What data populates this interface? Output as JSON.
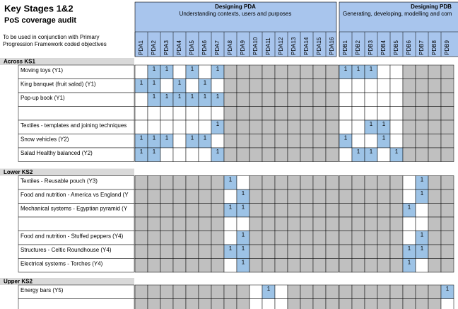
{
  "header": {
    "title": "Key Stages 1&2",
    "subtitle": "PoS coverage audit",
    "note": "To be used in conjunction with Primary Progression Framework coded objectives",
    "groups": [
      {
        "title": "Designing PDA",
        "subtitle": "Understanding contexts, users and purposes"
      },
      {
        "title": "Designing PDB",
        "subtitle": "Generating, developing, modelling and com"
      }
    ],
    "columns": [
      "PDA1",
      "PDA2",
      "PDA3",
      "PDA4",
      "PDA5",
      "PDA6",
      "PDA7",
      "PDA8",
      "PDA9",
      "PDA10",
      "PDA11",
      "PDA12",
      "PDA13",
      "PDA14",
      "PDA15",
      "PDA16",
      "PDB1",
      "PDB2",
      "PDB3",
      "PDB4",
      "PDB5",
      "PDB6",
      "PDB7",
      "PDB8",
      "PDB9"
    ]
  },
  "sections": [
    {
      "title": "Across KS1",
      "rows": [
        {
          "label": "Moving toys (Y1)",
          "cells": [
            null,
            1,
            1,
            null,
            1,
            null,
            1,
            null,
            null,
            null,
            null,
            null,
            null,
            null,
            null,
            null,
            1,
            1,
            1,
            null,
            null,
            null,
            null,
            null,
            null
          ]
        },
        {
          "label": "King banquet (fruit salad) (Y1)",
          "cells": [
            1,
            1,
            null,
            1,
            null,
            1,
            null,
            null,
            null,
            null,
            null,
            null,
            null,
            null,
            null,
            null,
            null,
            null,
            null,
            null,
            null,
            null,
            null,
            null,
            null
          ]
        },
        {
          "label": "Pop-up book (Y1)",
          "cells": [
            null,
            1,
            1,
            1,
            1,
            1,
            1,
            null,
            null,
            null,
            null,
            null,
            null,
            null,
            null,
            null,
            null,
            null,
            null,
            null,
            null,
            null,
            null,
            null,
            null
          ]
        },
        {
          "label": null,
          "cells": [
            null,
            null,
            null,
            null,
            null,
            null,
            null,
            null,
            null,
            null,
            null,
            null,
            null,
            null,
            null,
            null,
            null,
            null,
            null,
            null,
            null,
            null,
            null,
            null,
            null
          ]
        },
        {
          "label": "Textiles - templates and joining techniques",
          "cells": [
            null,
            null,
            null,
            null,
            null,
            null,
            1,
            null,
            null,
            null,
            null,
            null,
            null,
            null,
            null,
            null,
            null,
            null,
            1,
            1,
            null,
            null,
            null,
            null,
            null
          ]
        },
        {
          "label": "Snow vehicles (Y2)",
          "cells": [
            1,
            1,
            1,
            null,
            1,
            1,
            null,
            null,
            null,
            null,
            null,
            null,
            null,
            null,
            null,
            null,
            1,
            null,
            null,
            1,
            null,
            null,
            null,
            null,
            null
          ]
        },
        {
          "label": "Salad Healthy balanced (Y2)",
          "cells": [
            1,
            1,
            null,
            null,
            null,
            null,
            1,
            null,
            null,
            null,
            null,
            null,
            null,
            null,
            null,
            null,
            null,
            1,
            1,
            null,
            1,
            null,
            null,
            null,
            null
          ]
        }
      ]
    },
    {
      "title": "Lower KS2",
      "rows": [
        {
          "label": "Textiles - Reusable pouch (Y3)",
          "cells": [
            null,
            null,
            null,
            null,
            null,
            null,
            null,
            1,
            null,
            null,
            null,
            null,
            null,
            null,
            null,
            null,
            null,
            null,
            null,
            null,
            null,
            null,
            1,
            null,
            null
          ]
        },
        {
          "label": "Food and nutrition - America vs England (Y",
          "cells": [
            null,
            null,
            null,
            null,
            null,
            null,
            null,
            null,
            1,
            null,
            null,
            null,
            null,
            null,
            null,
            null,
            null,
            null,
            null,
            null,
            null,
            null,
            1,
            null,
            null
          ]
        },
        {
          "label": "Mechanical systems - Egyptian pyramid (Y",
          "cells": [
            null,
            null,
            null,
            null,
            null,
            null,
            null,
            1,
            1,
            null,
            null,
            null,
            null,
            null,
            null,
            null,
            null,
            null,
            null,
            null,
            null,
            1,
            null,
            null,
            null
          ]
        },
        {
          "label": null,
          "cells": [
            null,
            null,
            null,
            null,
            null,
            null,
            null,
            null,
            null,
            null,
            null,
            null,
            null,
            null,
            null,
            null,
            null,
            null,
            null,
            null,
            null,
            null,
            null,
            null,
            null
          ]
        },
        {
          "label": "Food and nutrition - Stuffed peppers (Y4)",
          "cells": [
            null,
            null,
            null,
            null,
            null,
            null,
            null,
            null,
            1,
            null,
            null,
            null,
            null,
            null,
            null,
            null,
            null,
            null,
            null,
            null,
            null,
            null,
            1,
            null,
            null
          ]
        },
        {
          "label": "Structures - Celtic Roundhouse (Y4)",
          "cells": [
            null,
            null,
            null,
            null,
            null,
            null,
            null,
            1,
            1,
            null,
            null,
            null,
            null,
            null,
            null,
            null,
            null,
            null,
            null,
            null,
            null,
            1,
            1,
            null,
            null
          ]
        },
        {
          "label": "Electrical systems - Torches (Y4)",
          "cells": [
            null,
            null,
            null,
            null,
            null,
            null,
            null,
            null,
            1,
            null,
            null,
            null,
            null,
            null,
            null,
            null,
            null,
            null,
            null,
            null,
            null,
            1,
            null,
            null,
            null
          ]
        }
      ]
    },
    {
      "title": "Upper KS2",
      "rows": [
        {
          "label": "Energy bars (Y5)",
          "cells": [
            null,
            null,
            null,
            null,
            null,
            null,
            null,
            null,
            null,
            null,
            1,
            null,
            null,
            null,
            null,
            null,
            null,
            null,
            null,
            null,
            null,
            null,
            null,
            null,
            1
          ]
        },
        {
          "label": null,
          "cells": [
            null,
            null,
            null,
            null,
            null,
            null,
            null,
            null,
            null,
            null,
            null,
            null,
            null,
            null,
            null,
            null,
            null,
            null,
            null,
            null,
            null,
            null,
            null,
            null,
            null
          ]
        }
      ]
    }
  ]
}
